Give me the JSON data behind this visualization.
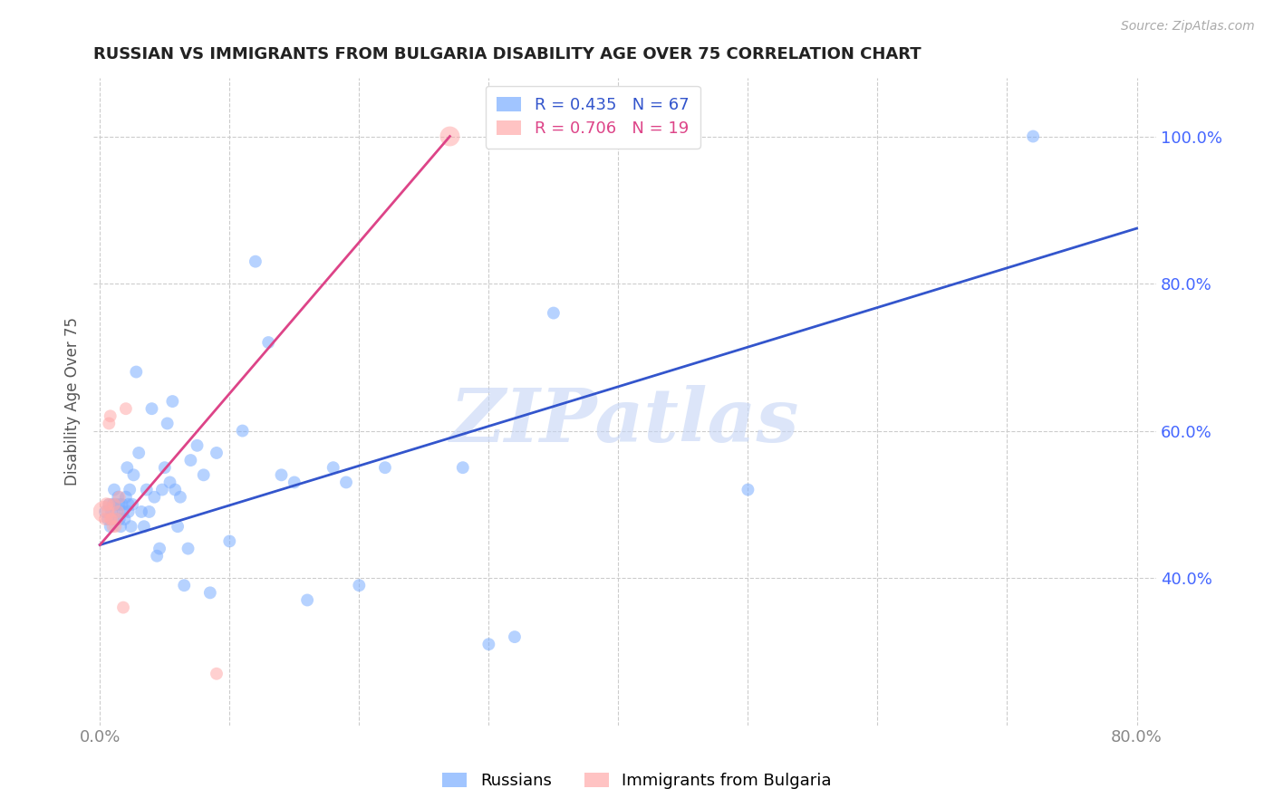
{
  "title": "RUSSIAN VS IMMIGRANTS FROM BULGARIA DISABILITY AGE OVER 75 CORRELATION CHART",
  "source": "Source: ZipAtlas.com",
  "ylabel": "Disability Age Over 75",
  "xlim": [
    -0.005,
    0.815
  ],
  "ylim": [
    0.2,
    1.08
  ],
  "xtick_positions": [
    0.0,
    0.1,
    0.2,
    0.3,
    0.4,
    0.5,
    0.6,
    0.7,
    0.8
  ],
  "xticklabels": [
    "0.0%",
    "",
    "",
    "",
    "",
    "",
    "",
    "",
    "80.0%"
  ],
  "yticks_right": [
    0.4,
    0.6,
    0.8,
    1.0
  ],
  "yticklabels_right": [
    "40.0%",
    "60.0%",
    "80.0%",
    "100.0%"
  ],
  "blue_color": "#7aadff",
  "pink_color": "#ffaaaa",
  "trendline_blue_color": "#3355cc",
  "trendline_pink_color": "#dd4488",
  "legend_R_blue": "0.435",
  "legend_N_blue": "67",
  "legend_R_pink": "0.706",
  "legend_N_pink": "19",
  "watermark": "ZIPatlas",
  "watermark_color": "#c5d5f5",
  "background": "#ffffff",
  "blue_trendline_x": [
    0.0,
    0.8
  ],
  "blue_trendline_y": [
    0.445,
    0.875
  ],
  "pink_trendline_x": [
    0.0,
    0.27
  ],
  "pink_trendline_y": [
    0.445,
    1.0
  ],
  "blue_scatter_x": [
    0.004,
    0.006,
    0.007,
    0.008,
    0.009,
    0.01,
    0.01,
    0.011,
    0.012,
    0.013,
    0.014,
    0.015,
    0.015,
    0.016,
    0.017,
    0.018,
    0.019,
    0.02,
    0.021,
    0.022,
    0.022,
    0.023,
    0.024,
    0.025,
    0.026,
    0.028,
    0.03,
    0.032,
    0.034,
    0.036,
    0.038,
    0.04,
    0.042,
    0.044,
    0.046,
    0.048,
    0.05,
    0.052,
    0.054,
    0.056,
    0.058,
    0.06,
    0.062,
    0.065,
    0.068,
    0.07,
    0.075,
    0.08,
    0.085,
    0.09,
    0.1,
    0.11,
    0.12,
    0.13,
    0.14,
    0.15,
    0.16,
    0.18,
    0.19,
    0.2,
    0.22,
    0.28,
    0.3,
    0.32,
    0.35,
    0.5,
    0.72
  ],
  "blue_scatter_y": [
    0.49,
    0.48,
    0.5,
    0.47,
    0.49,
    0.5,
    0.48,
    0.52,
    0.5,
    0.49,
    0.51,
    0.48,
    0.5,
    0.47,
    0.5,
    0.49,
    0.48,
    0.51,
    0.55,
    0.5,
    0.49,
    0.52,
    0.47,
    0.5,
    0.54,
    0.68,
    0.57,
    0.49,
    0.47,
    0.52,
    0.49,
    0.63,
    0.51,
    0.43,
    0.44,
    0.52,
    0.55,
    0.61,
    0.53,
    0.64,
    0.52,
    0.47,
    0.51,
    0.39,
    0.44,
    0.56,
    0.58,
    0.54,
    0.38,
    0.57,
    0.45,
    0.6,
    0.83,
    0.72,
    0.54,
    0.53,
    0.37,
    0.55,
    0.53,
    0.39,
    0.55,
    0.55,
    0.31,
    0.32,
    0.76,
    0.52,
    1.0
  ],
  "pink_scatter_x": [
    0.003,
    0.004,
    0.005,
    0.006,
    0.007,
    0.007,
    0.008,
    0.008,
    0.009,
    0.01,
    0.011,
    0.012,
    0.013,
    0.014,
    0.015,
    0.018,
    0.02,
    0.09,
    0.27
  ],
  "pink_scatter_y": [
    0.49,
    0.48,
    0.5,
    0.49,
    0.61,
    0.5,
    0.48,
    0.62,
    0.48,
    0.47,
    0.5,
    0.47,
    0.48,
    0.49,
    0.51,
    0.36,
    0.63,
    0.27,
    1.0
  ],
  "pink_scatter_size": [
    300,
    100,
    120,
    100,
    100,
    100,
    100,
    100,
    100,
    100,
    100,
    100,
    100,
    100,
    100,
    100,
    100,
    100,
    250
  ]
}
